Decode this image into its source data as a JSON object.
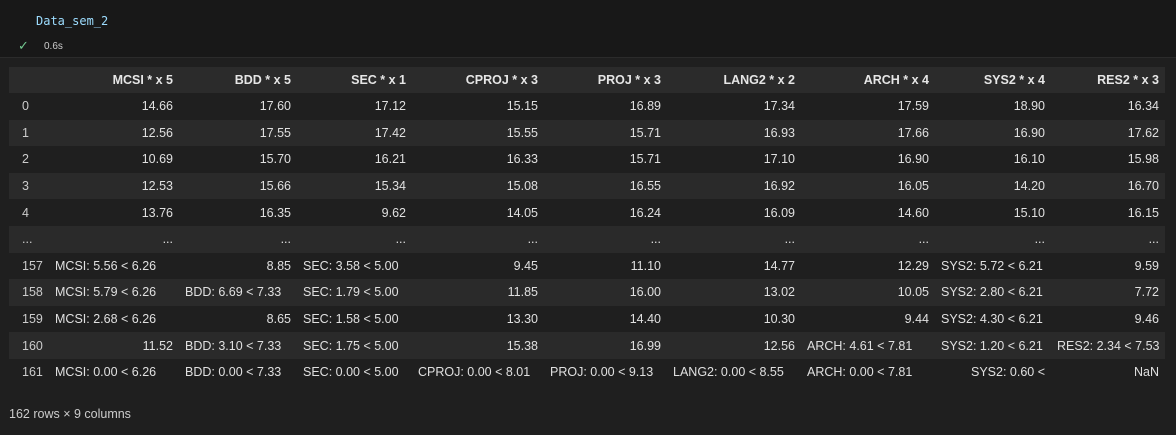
{
  "cell": {
    "code": "Data_sem_2",
    "exec_time": "0.6s"
  },
  "table": {
    "columns": [
      "",
      "MCSI * x 5",
      "BDD * x 5",
      "SEC * x 1",
      "CPROJ * x 3",
      "PROJ * x 3",
      "LANG2 * x 2",
      "ARCH * x 4",
      "SYS2 * x 4",
      "RES2 * x 3"
    ],
    "rows": [
      [
        "0",
        "14.66",
        "17.60",
        "17.12",
        "15.15",
        "16.89",
        "17.34",
        "17.59",
        "18.90",
        "16.34"
      ],
      [
        "1",
        "12.56",
        "17.55",
        "17.42",
        "15.55",
        "15.71",
        "16.93",
        "17.66",
        "16.90",
        "17.62"
      ],
      [
        "2",
        "10.69",
        "15.70",
        "16.21",
        "16.33",
        "15.71",
        "17.10",
        "16.90",
        "16.10",
        "15.98"
      ],
      [
        "3",
        "12.53",
        "15.66",
        "15.34",
        "15.08",
        "16.55",
        "16.92",
        "16.05",
        "14.20",
        "16.70"
      ],
      [
        "4",
        "13.76",
        "16.35",
        "9.62",
        "14.05",
        "16.24",
        "16.09",
        "14.60",
        "15.10",
        "16.15"
      ],
      [
        "...",
        "...",
        "...",
        "...",
        "...",
        "...",
        "...",
        "...",
        "...",
        "..."
      ],
      [
        "157",
        "MCSI: 5.56 < 6.26",
        "8.85",
        "SEC: 3.58 < 5.00",
        "9.45",
        "11.10",
        "14.77",
        "12.29",
        "SYS2: 5.72 < 6.21",
        "9.59"
      ],
      [
        "158",
        "MCSI: 5.79 < 6.26",
        "BDD: 6.69 < 7.33",
        "SEC: 1.79 < 5.00",
        "11.85",
        "16.00",
        "13.02",
        "10.05",
        "SYS2: 2.80 < 6.21",
        "7.72"
      ],
      [
        "159",
        "MCSI: 2.68 < 6.26",
        "8.65",
        "SEC: 1.58 < 5.00",
        "13.30",
        "14.40",
        "10.30",
        "9.44",
        "SYS2: 4.30 < 6.21",
        "9.46"
      ],
      [
        "160",
        "11.52",
        "BDD: 3.10 < 7.33",
        "SEC: 1.75 < 5.00",
        "15.38",
        "16.99",
        "12.56",
        "ARCH: 4.61 < 7.81",
        "SYS2: 1.20 < 6.21",
        "RES2: 2.34 < 7.53"
      ],
      [
        "161",
        "MCSI: 0.00 < 6.26",
        "BDD: 0.00 < 7.33",
        "SEC: 0.00 < 5.00",
        "CPROJ: 0.00 < 8.01",
        "PROJ: 0.00 < 9.13",
        "LANG2: 0.00 < 8.55",
        "ARCH: 0.00 < 7.81",
        "SYS2: 0.60 <",
        "NaN"
      ]
    ],
    "shape": "162 rows × 9 columns"
  }
}
